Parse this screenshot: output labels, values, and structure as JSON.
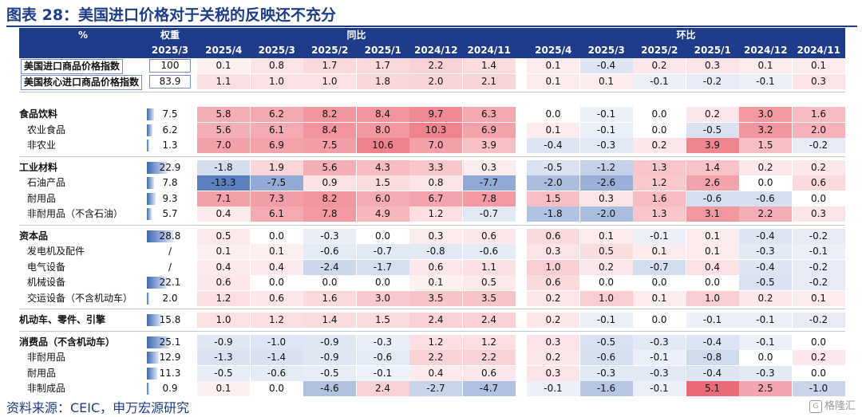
{
  "title": "图表 28：美国进口价格对于关税的反映还不充分",
  "source": "资料来源：CEIC，申万宏源研究",
  "watermark": "格隆汇",
  "colors": {
    "header_bg": "#1f3c8b",
    "pos": "#e8505f",
    "neg": "#3f68b5",
    "title": "#1f3c8b"
  },
  "header": {
    "unit": "%",
    "weight_group": "权重",
    "weight_col": "2025/3",
    "yoy_group": "同比",
    "mom_group": "环比",
    "months": [
      "2025/4",
      "2025/3",
      "2025/2",
      "2025/1",
      "2024/12",
      "2024/11"
    ]
  },
  "rows": [
    {
      "label": "美国进口商品价格指数",
      "style": "boxed",
      "weight": "100",
      "w": 100,
      "yoy": [
        "0.1",
        "0.8",
        "1.7",
        "1.7",
        "2.2",
        "1.4"
      ],
      "mom": [
        "0.1",
        "-0.4",
        "0.2",
        "0.3",
        "0.1",
        "0.1"
      ]
    },
    {
      "label": "美国核心进口商品价格指数",
      "style": "boxed",
      "weight": "83.9",
      "w": 83.9,
      "yoy": [
        "1.1",
        "1.0",
        "1.0",
        "1.8",
        "2.0",
        "2.1"
      ],
      "mom": [
        "0.1",
        "0.1",
        "-0.1",
        "-0.2",
        "-0.1",
        "0.3"
      ]
    },
    {
      "label": "食品饮料",
      "style": "group",
      "weight": "7.5",
      "w": 7.5,
      "yoy": [
        "5.8",
        "6.2",
        "8.2",
        "8.4",
        "9.7",
        "6.3"
      ],
      "mom": [
        "0.0",
        "-0.1",
        "0.0",
        "0.2",
        "3.0",
        "1.6"
      ]
    },
    {
      "label": "农业食品",
      "style": "sub",
      "weight": "6.2",
      "w": 6.2,
      "yoy": [
        "5.6",
        "6.1",
        "8.4",
        "8.0",
        "10.3",
        "6.9"
      ],
      "mom": [
        "0.1",
        "-0.1",
        "0.0",
        "-0.5",
        "3.2",
        "2.0"
      ]
    },
    {
      "label": "非农业",
      "style": "sub",
      "weight": "1.3",
      "w": 1.3,
      "yoy": [
        "7.0",
        "6.9",
        "7.5",
        "10.6",
        "7.0",
        "3.9"
      ],
      "mom": [
        "-0.4",
        "-0.3",
        "0.2",
        "3.9",
        "1.5",
        "-0.2"
      ]
    },
    {
      "label": "工业材料",
      "style": "group",
      "weight": "22.9",
      "w": 22.9,
      "yoy": [
        "-1.8",
        "1.9",
        "5.6",
        "4.3",
        "3.3",
        "0.3"
      ],
      "mom": [
        "-0.5",
        "-1.2",
        "1.3",
        "1.4",
        "0.2",
        "0.2"
      ]
    },
    {
      "label": "石油产品",
      "style": "sub",
      "weight": "7.8",
      "w": 7.8,
      "yoy": [
        "-13.3",
        "-7.5",
        "0.9",
        "1.5",
        "0.8",
        "-7.7"
      ],
      "mom": [
        "-2.0",
        "-2.6",
        "1.2",
        "2.6",
        "0.0",
        "0.6"
      ]
    },
    {
      "label": "耐用品",
      "style": "sub",
      "weight": "9.3",
      "w": 9.3,
      "yoy": [
        "7.1",
        "7.3",
        "8.2",
        "6.0",
        "6.7",
        "7.8"
      ],
      "mom": [
        "1.5",
        "0.3",
        "1.6",
        "-0.6",
        "-0.6",
        "0.0"
      ]
    },
    {
      "label": "非耐用品（不含石油）",
      "style": "sub",
      "weight": "5.7",
      "w": 5.7,
      "yoy": [
        "0.4",
        "6.1",
        "7.8",
        "4.9",
        "1.2",
        "-0.7"
      ],
      "mom": [
        "-1.8",
        "-2.0",
        "1.3",
        "3.1",
        "2.2",
        "0.3"
      ]
    },
    {
      "label": "资本品",
      "style": "group",
      "weight": "28.8",
      "w": 28.8,
      "yoy": [
        "0.5",
        "0.0",
        "-0.3",
        "0.0",
        "0.3",
        "0.6"
      ],
      "mom": [
        "0.6",
        "0.1",
        "-0.1",
        "0.1",
        "-0.4",
        "-0.2"
      ]
    },
    {
      "label": "发电机及配件",
      "style": "sub",
      "weight": "/",
      "w": 0,
      "yoy": [
        "0.1",
        "0.1",
        "-0.6",
        "-0.7",
        "-0.8",
        "-0.6"
      ],
      "mom": [
        "0.3",
        "0.5",
        "0.1",
        "0.1",
        "-0.3",
        "-0.1"
      ]
    },
    {
      "label": "电气设备",
      "style": "sub",
      "weight": "/",
      "w": 0,
      "yoy": [
        "0.4",
        "0.4",
        "-2.4",
        "-1.7",
        "0.6",
        "1.1"
      ],
      "mom": [
        "1.0",
        "0.2",
        "-0.7",
        "0.4",
        "-0.4",
        "-0.2"
      ]
    },
    {
      "label": "机械设备",
      "style": "sub",
      "weight": "22.1",
      "w": 22.1,
      "yoy": [
        "0.6",
        "0.0",
        "0.0",
        "0.0",
        "0.1",
        "0.5"
      ],
      "mom": [
        "0.6",
        "0.0",
        "0.0",
        "0.0",
        "-0.5",
        "-0.2"
      ]
    },
    {
      "label": "交运设备（不含机动车）",
      "style": "sub",
      "weight": "2.0",
      "w": 2.0,
      "yoy": [
        "1.2",
        "0.6",
        "1.6",
        "3.0",
        "3.5",
        "3.5"
      ],
      "mom": [
        "0.2",
        "1.0",
        "0.1",
        "1.0",
        "0.2",
        "0.1"
      ]
    },
    {
      "label": "机动车、零件、引擎",
      "style": "group",
      "weight": "15.8",
      "w": 15.8,
      "yoy": [
        "1.0",
        "1.2",
        "1.4",
        "1.5",
        "2.4",
        "2.4"
      ],
      "mom": [
        "0.2",
        "-0.1",
        "0.0",
        "-0.1",
        "-0.1",
        "-0.2"
      ]
    },
    {
      "label": "消费品（不含机动车）",
      "style": "group",
      "weight": "25.1",
      "w": 25.1,
      "yoy": [
        "-0.9",
        "-1.0",
        "-0.9",
        "-0.3",
        "1.2",
        "1.2"
      ],
      "mom": [
        "0.3",
        "-0.5",
        "-0.3",
        "-0.4",
        "-0.1",
        "0.0"
      ]
    },
    {
      "label": "非耐用品",
      "style": "sub",
      "weight": "12.9",
      "w": 12.9,
      "yoy": [
        "-1.3",
        "-1.4",
        "-0.9",
        "-0.6",
        "2.2",
        "2.2"
      ],
      "mom": [
        "0.2",
        "-0.6",
        "-0.1",
        "-0.8",
        "0.0",
        "0.2"
      ]
    },
    {
      "label": "耐用品",
      "style": "sub",
      "weight": "11.3",
      "w": 11.3,
      "yoy": [
        "-0.5",
        "-0.6",
        "-0.5",
        "-0.1",
        "0.4",
        "0.6"
      ],
      "mom": [
        "0.3",
        "-0.3",
        "-0.3",
        "-0.4",
        "-0.3",
        "0.0"
      ]
    },
    {
      "label": "非制成品",
      "style": "sub",
      "weight": "0.9",
      "w": 0.9,
      "yoy": [
        "0.1",
        "0.0",
        "-4.6",
        "2.4",
        "-2.7",
        "-4.7"
      ],
      "mom": [
        "-0.1",
        "-1.6",
        "-0.1",
        "5.1",
        "2.5",
        "-1.0"
      ]
    }
  ]
}
